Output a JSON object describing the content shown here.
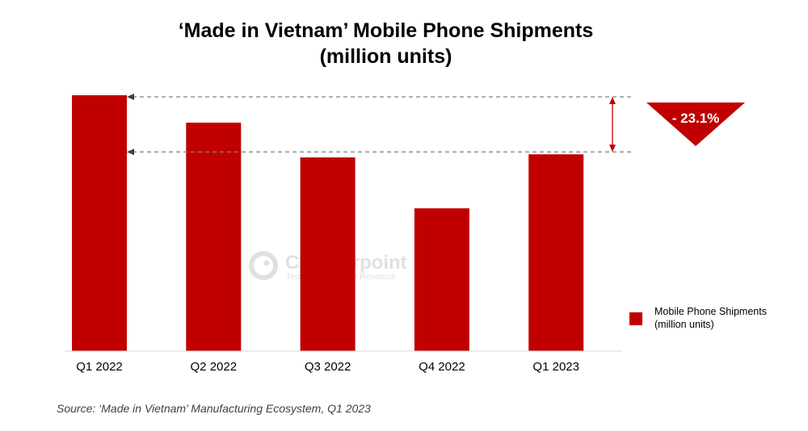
{
  "chart_data": {
    "type": "bar",
    "title": "‘Made in Vietnam’ Mobile Phone Shipments",
    "subtitle": "(million units)",
    "categories": [
      "Q1 2022",
      "Q2 2022",
      "Q3 2022",
      "Q4 2022",
      "Q1 2023"
    ],
    "series": [
      {
        "name": "Mobile Phone Shipments (million units)",
        "values": [
          100,
          89.3,
          75.7,
          55.8,
          76.9
        ],
        "color": "#c00000"
      }
    ],
    "value_note": "values are relative (Q1 2022 = 100); chart has no value axis",
    "ylim": [
      0,
      100
    ],
    "grid": false,
    "legend": "right",
    "annotation": {
      "label": "- 23.1%",
      "from": "Q1 2022",
      "to": "Q1 2023",
      "color": "#c00000"
    },
    "watermark": "Counterpoint Technology Market Research"
  },
  "source": "Source: ‘Made in Vietnam’ Manufacturing Ecosystem, Q1 2023",
  "legend": {
    "line1": "Mobile Phone Shipments",
    "line2": "(million units)"
  }
}
